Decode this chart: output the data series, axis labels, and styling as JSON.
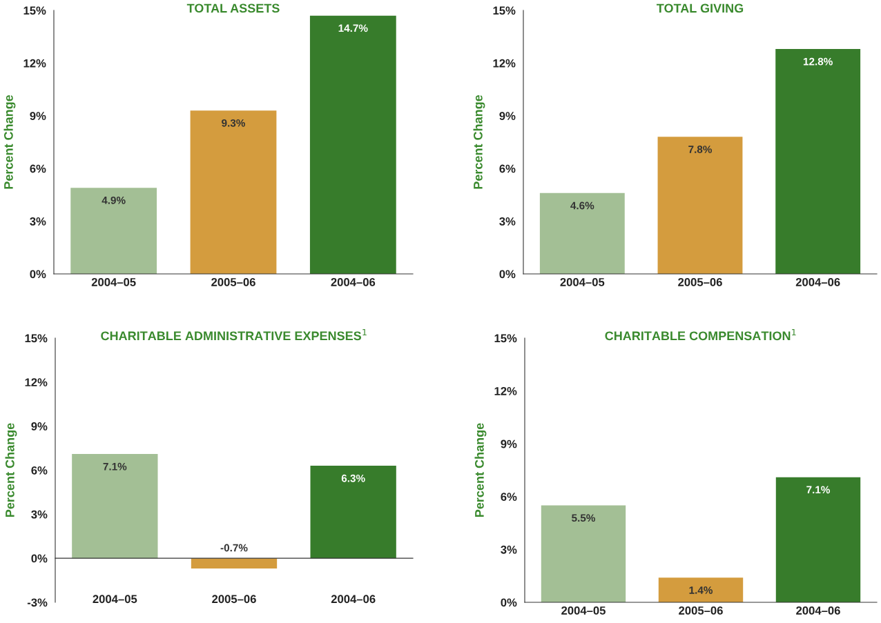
{
  "chart_data": [
    {
      "type": "bar",
      "title": "TOTAL ASSETS",
      "ylabel": "Percent Change",
      "categories": [
        "2004–05",
        "2005–06",
        "2004–06"
      ],
      "values": [
        4.9,
        9.3,
        14.7
      ],
      "value_labels": [
        "4.9%",
        "9.3%",
        "14.7%"
      ],
      "colors": [
        "#a3bf95",
        "#d49c3e",
        "#377c2b"
      ],
      "ylim": [
        0,
        15
      ],
      "yticks": [
        {
          "value": 0,
          "label": "0%"
        },
        {
          "value": 3,
          "label": "3%"
        },
        {
          "value": 6,
          "label": "6%"
        },
        {
          "value": 9,
          "label": "9%"
        },
        {
          "value": 12,
          "label": "12%"
        },
        {
          "value": 15,
          "label": "15%"
        }
      ]
    },
    {
      "type": "bar",
      "title": "TOTAL GIVING",
      "ylabel": "Percent Change",
      "categories": [
        "2004–05",
        "2005–06",
        "2004–06"
      ],
      "values": [
        4.6,
        7.8,
        12.8
      ],
      "value_labels": [
        "4.6%",
        "7.8%",
        "12.8%"
      ],
      "colors": [
        "#a3bf95",
        "#d49c3e",
        "#377c2b"
      ],
      "ylim": [
        0,
        15
      ],
      "yticks": [
        {
          "value": 0,
          "label": "0%"
        },
        {
          "value": 3,
          "label": "3%"
        },
        {
          "value": 6,
          "label": "6%"
        },
        {
          "value": 9,
          "label": "9%"
        },
        {
          "value": 12,
          "label": "12%"
        },
        {
          "value": 15,
          "label": "15%"
        }
      ]
    },
    {
      "type": "bar",
      "title": "CHARITABLE ADMINISTRATIVE EXPENSES$^{1}$",
      "ylabel": "Percent Change",
      "categories": [
        "2004–05",
        "2005–06",
        "2004–06"
      ],
      "values": [
        7.1,
        -0.7,
        6.3
      ],
      "value_labels": [
        "7.1%",
        "-0.7%",
        "6.3%"
      ],
      "colors": [
        "#a3bf95",
        "#d49c3e",
        "#377c2b"
      ],
      "ylim": [
        -3,
        15
      ],
      "yticks": [
        {
          "value": -3,
          "label": "-3%"
        },
        {
          "value": 0,
          "label": "0%"
        },
        {
          "value": 3,
          "label": "3%"
        },
        {
          "value": 6,
          "label": "6%"
        },
        {
          "value": 9,
          "label": "9%"
        },
        {
          "value": 12,
          "label": "12%"
        },
        {
          "value": 15,
          "label": "15%"
        }
      ]
    },
    {
      "type": "bar",
      "title": "CHARITABLE COMPENSATION$^{1}$",
      "ylabel": "Percent Change",
      "categories": [
        "2004–05",
        "2005–06",
        "2004–06"
      ],
      "values": [
        5.5,
        1.4,
        7.1
      ],
      "value_labels": [
        "5.5%",
        "1.4%",
        "7.1%"
      ],
      "colors": [
        "#a3bf95",
        "#d49c3e",
        "#377c2b"
      ],
      "ylim": [
        0,
        15
      ],
      "yticks": [
        {
          "value": 0,
          "label": "0%"
        },
        {
          "value": 3,
          "label": "3%"
        },
        {
          "value": 6,
          "label": "6%"
        },
        {
          "value": 9,
          "label": "9%"
        },
        {
          "value": 12,
          "label": "12%"
        },
        {
          "value": 15,
          "label": "15%"
        }
      ]
    }
  ]
}
